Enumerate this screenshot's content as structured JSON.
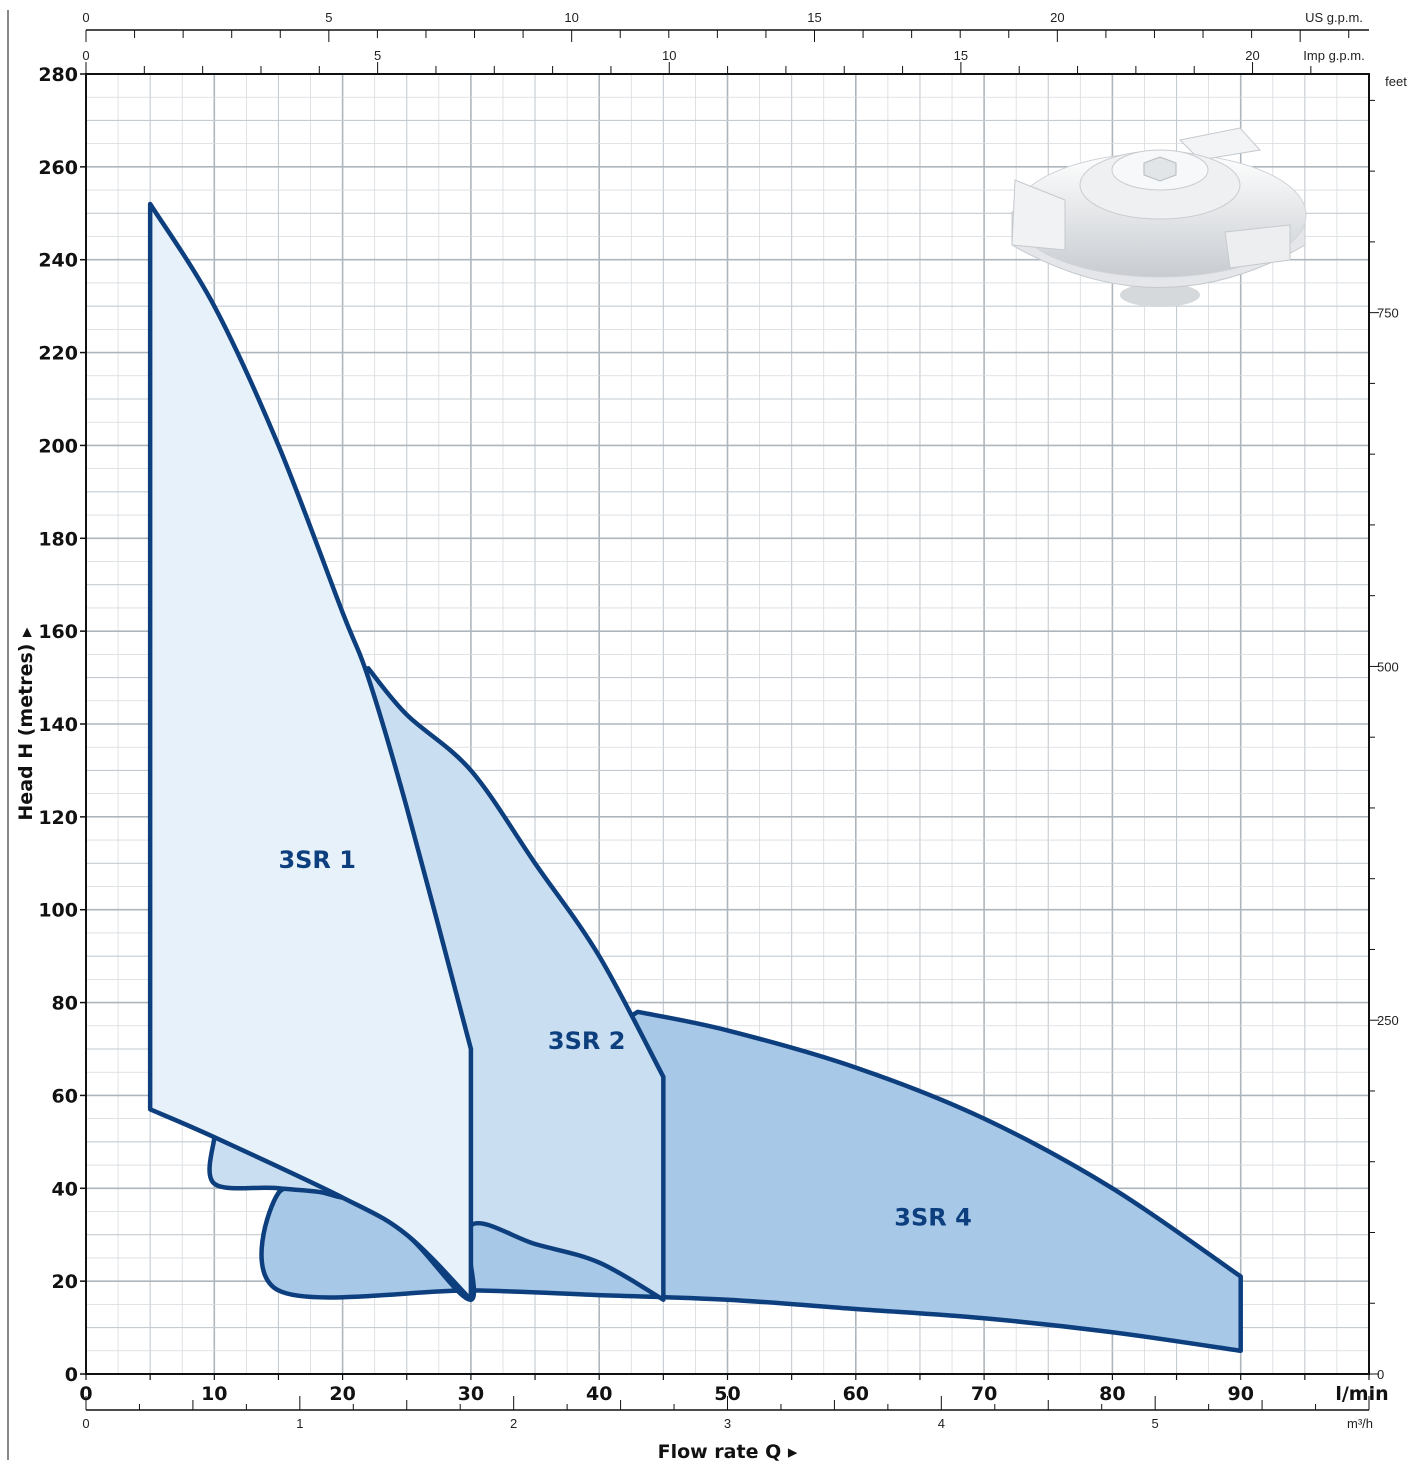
{
  "chart_data": {
    "type": "area",
    "title": "",
    "xlabel": "Flow rate  Q",
    "ylabel": "Head H (metres)",
    "xlim": [
      0,
      100
    ],
    "ylim": [
      0,
      280
    ],
    "x_unit": "l/min",
    "x_ticks": [
      0,
      10,
      20,
      30,
      40,
      50,
      60,
      70,
      80,
      90
    ],
    "y_ticks": [
      0,
      20,
      40,
      60,
      80,
      100,
      120,
      140,
      160,
      180,
      200,
      220,
      240,
      260,
      280
    ],
    "secondary_axes": {
      "us_gpm": {
        "label": "US g.p.m.",
        "ticks": [
          0,
          5,
          10,
          15,
          20
        ]
      },
      "imp_gpm": {
        "label": "Imp g.p.m.",
        "ticks": [
          0,
          5,
          10,
          15,
          20
        ]
      },
      "m3h": {
        "label": "m³/h",
        "ticks": [
          0,
          1,
          2,
          3,
          4,
          5
        ]
      },
      "feet": {
        "label": "feet",
        "ticks": [
          0,
          250,
          500,
          750
        ]
      }
    },
    "grid": true,
    "series": [
      {
        "name": "3SR 1",
        "color": "#e6f1fa",
        "label_at": [
          15,
          109
        ],
        "upper": [
          [
            5,
            252
          ],
          [
            10,
            230
          ],
          [
            15,
            200
          ],
          [
            20,
            164
          ],
          [
            22,
            150
          ],
          [
            25,
            122
          ],
          [
            30,
            70
          ]
        ],
        "lower": [
          [
            30,
            16
          ],
          [
            25,
            30
          ],
          [
            20,
            38
          ],
          [
            10,
            51
          ],
          [
            5,
            57
          ]
        ]
      },
      {
        "name": "3SR 2",
        "color": "#c9def0",
        "label_at": [
          36,
          70
        ],
        "upper": [
          [
            22,
            152
          ],
          [
            25,
            142
          ],
          [
            30,
            130
          ],
          [
            35,
            110
          ],
          [
            40,
            90
          ],
          [
            45,
            64
          ]
        ],
        "lower": [
          [
            45,
            16
          ],
          [
            40,
            24
          ],
          [
            35,
            28
          ],
          [
            30,
            32
          ],
          [
            30,
            16
          ],
          [
            25,
            30
          ],
          [
            20,
            38
          ],
          [
            15,
            40
          ],
          [
            10,
            41
          ],
          [
            10,
            51
          ]
        ]
      },
      {
        "name": "3SR 4",
        "color": "#a8c8e8",
        "label_at": [
          63,
          32
        ],
        "upper": [
          [
            43,
            78
          ],
          [
            50,
            74
          ],
          [
            60,
            66
          ],
          [
            70,
            55
          ],
          [
            80,
            40
          ],
          [
            90,
            21
          ]
        ],
        "lower": [
          [
            90,
            5
          ],
          [
            80,
            9
          ],
          [
            70,
            12
          ],
          [
            60,
            14
          ],
          [
            50,
            16
          ],
          [
            40,
            17
          ],
          [
            30,
            18
          ],
          [
            15,
            18
          ],
          [
            15,
            39
          ],
          [
            20,
            38
          ]
        ]
      }
    ]
  },
  "labels": {
    "us_gpm": "US g.p.m.",
    "imp_gpm": "Imp g.p.m.",
    "feet": "feet",
    "lmin": "l/min",
    "m3h": "m³/h",
    "ylabel": "Head H (metres)",
    "xlabel": "Flow rate  Q"
  },
  "image": {
    "description_icon": "impeller-image"
  }
}
